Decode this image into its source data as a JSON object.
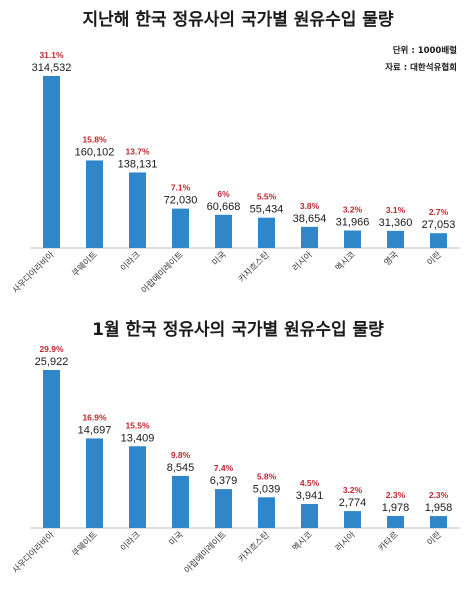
{
  "chart_data": [
    {
      "type": "bar",
      "title": "지난해 한국 정유사의 국가별 원유수입 물량",
      "unit_label": "단위 : 1000배럴",
      "source_label": "자료 : 대한석유협회",
      "categories": [
        "사우디아라비아",
        "쿠웨이트",
        "이라크",
        "아랍에미레이트",
        "미국",
        "카자흐스탄",
        "러시아",
        "멕시코",
        "영국",
        "이란"
      ],
      "values": [
        314532,
        160102,
        138131,
        72030,
        60668,
        55434,
        38654,
        31966,
        31360,
        27053
      ],
      "value_labels": [
        "314,532",
        "160,102",
        "138,131",
        "72,030",
        "60,668",
        "55,434",
        "38,654",
        "31,966",
        "31,360",
        "27,053"
      ],
      "percent_labels": [
        "31.1%",
        "15.8%",
        "13.7%",
        "7.1%",
        "6%",
        "5.5%",
        "3.8%",
        "3.2%",
        "3.1%",
        "2.7%"
      ],
      "colors": {
        "bar": "#2f86c8",
        "percent": "#c0262e",
        "axis": "#bfbfbf"
      }
    },
    {
      "type": "bar",
      "title": "1월 한국 정유사의 국가별 원유수입 물량",
      "categories": [
        "사우디아라비아",
        "쿠웨이트",
        "이라크",
        "미국",
        "아랍에미레이트",
        "카자흐스탄",
        "멕시코",
        "러시아",
        "카타르",
        "이란"
      ],
      "values": [
        25922,
        14697,
        13409,
        8545,
        6379,
        5039,
        3941,
        2774,
        1978,
        1958
      ],
      "value_labels": [
        "25,922",
        "14,697",
        "13,409",
        "8,545",
        "6,379",
        "5,039",
        "3,941",
        "2,774",
        "1,978",
        "1,958"
      ],
      "percent_labels": [
        "29.9%",
        "16.9%",
        "15.5%",
        "9.8%",
        "7.4%",
        "5.8%",
        "4.5%",
        "3.2%",
        "2.3%",
        "2.3%"
      ],
      "colors": {
        "bar": "#2f86c8",
        "percent": "#c0262e",
        "axis": "#bfbfbf"
      }
    }
  ]
}
